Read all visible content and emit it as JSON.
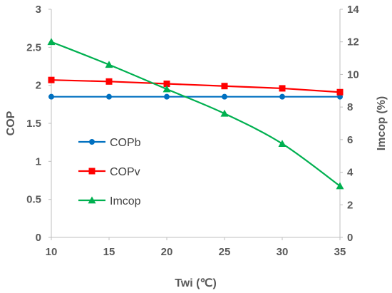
{
  "chart_data": {
    "type": "line",
    "x": [
      10,
      15,
      20,
      25,
      30,
      35
    ],
    "xlabel": "Twi (℃)",
    "ylabel": "COP",
    "y2label": "Imcop (%)",
    "xlim": [
      10,
      35
    ],
    "ylim": [
      0,
      3
    ],
    "y2lim": [
      0,
      14
    ],
    "x_ticks": [
      "10",
      "15",
      "20",
      "25",
      "30",
      "35"
    ],
    "y_ticks": [
      "0",
      "0.5",
      "1",
      "1.5",
      "2",
      "2.5",
      "3"
    ],
    "y2_ticks": [
      "0",
      "2",
      "4",
      "6",
      "8",
      "10",
      "12",
      "14"
    ],
    "grid": false,
    "legend_position": "middle-left",
    "series": [
      {
        "name": "COPb",
        "axis": "left",
        "marker": "circle",
        "color": "#0070C0",
        "values": [
          1.85,
          1.85,
          1.85,
          1.85,
          1.85,
          1.85
        ]
      },
      {
        "name": "COPv",
        "axis": "left",
        "marker": "square",
        "color": "#FF0000",
        "values": [
          2.07,
          2.05,
          2.02,
          1.99,
          1.96,
          1.91
        ]
      },
      {
        "name": "Imcop",
        "axis": "right",
        "marker": "triangle",
        "color": "#00B050",
        "values": [
          12.0,
          10.6,
          9.1,
          7.6,
          5.75,
          3.15
        ]
      }
    ]
  }
}
